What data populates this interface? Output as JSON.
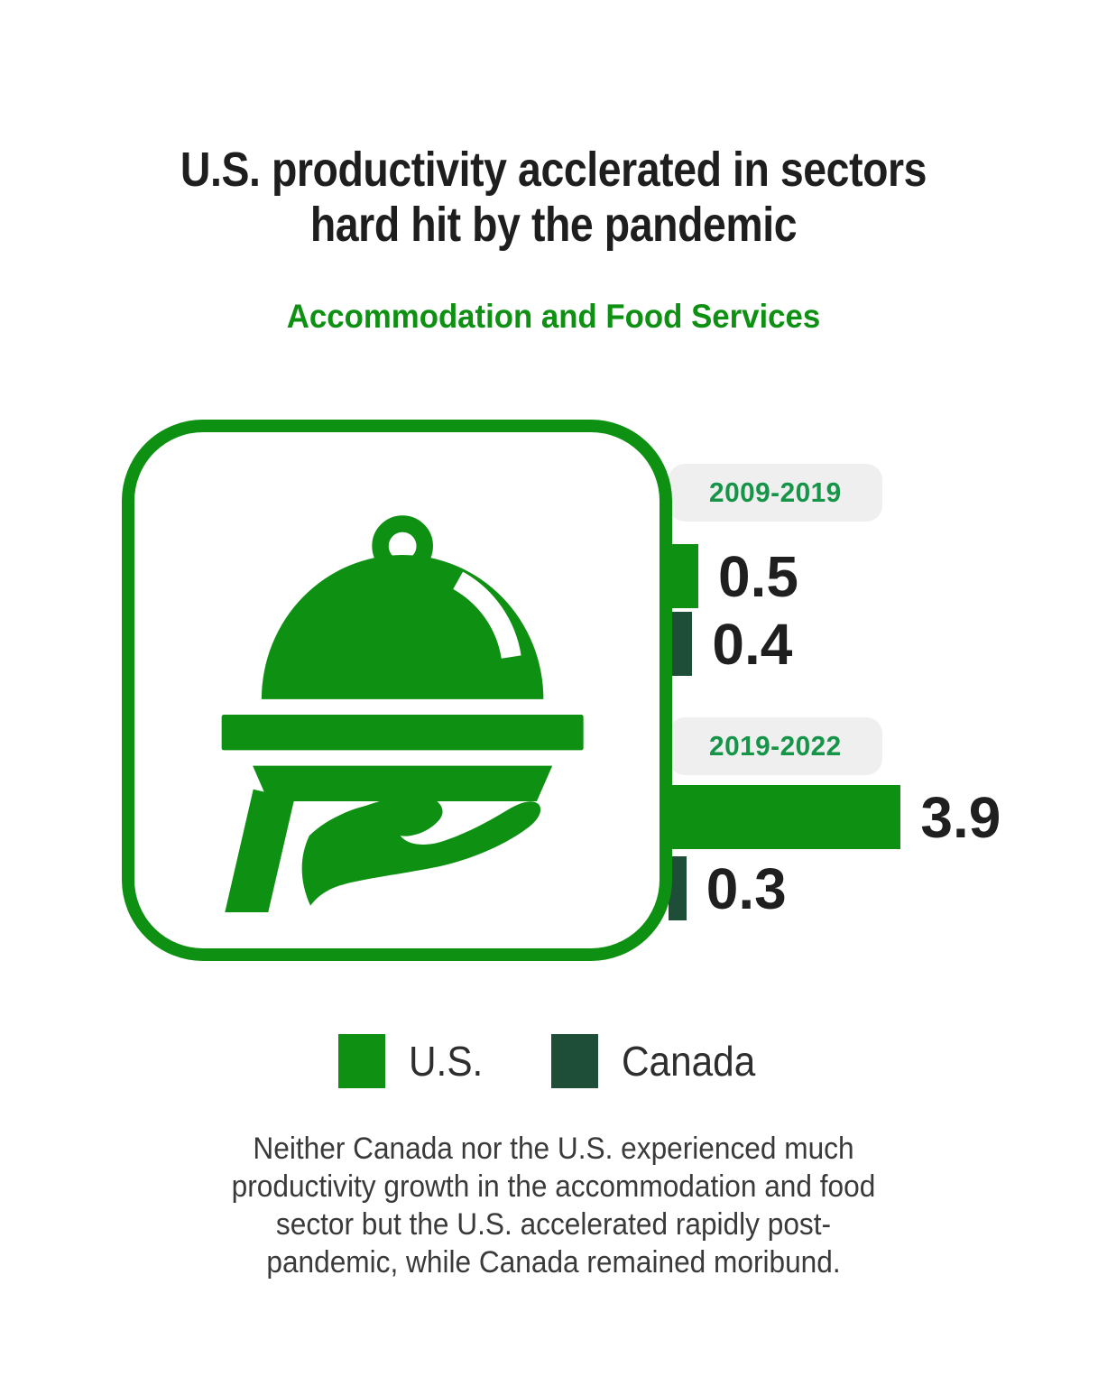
{
  "title": {
    "lines": [
      "U.S. productivity acclerated in sectors",
      "hard hit by the pandemic"
    ]
  },
  "subtitle": "Accommodation and Food Services",
  "sector_icon": "cloche-on-serving-hand",
  "chart_data": {
    "type": "bar",
    "orientation": "horizontal",
    "title": "Accommodation and Food Services",
    "groups": [
      {
        "label": "2009-2019"
      },
      {
        "label": "2019-2022"
      }
    ],
    "series": [
      {
        "name": "U.S.",
        "color": "#0e9112",
        "values": [
          0.5,
          3.9
        ]
      },
      {
        "name": "Canada",
        "color": "#1f4e38",
        "values": [
          0.4,
          0.3
        ]
      }
    ],
    "xlim": [
      0,
      4.2
    ],
    "value_labels_shown": true,
    "legend_position": "bottom",
    "grid": false
  },
  "legend": [
    {
      "label": "U.S.",
      "color": "#0e9112"
    },
    {
      "label": "Canada",
      "color": "#1f4e38"
    }
  ],
  "caption": {
    "lines": [
      "Neither Canada nor the U.S. experienced much",
      "productivity growth in the accommodation and food",
      "sector but the U.S. accelerated rapidly post-",
      "pandemic, while Canada remained moribund."
    ],
    "full_text": "Neither Canada nor the U.S. experienced much productivity growth in the accommodation and food sector but the U.S. accelerated rapidly post-pandemic, while Canada remained moribund."
  },
  "colors": {
    "us_green": "#0e9112",
    "canada_dark_green": "#1f4e38",
    "pill_background": "#efefef",
    "pill_text_green": "#169549",
    "title_text": "#1e1e1e",
    "caption_text": "#3a3a3a",
    "background": "#ffffff"
  }
}
